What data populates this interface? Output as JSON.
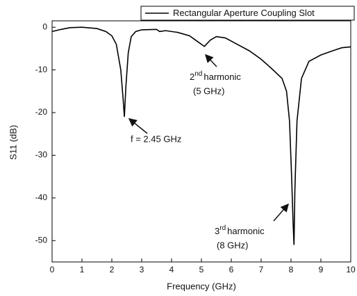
{
  "chart_data": {
    "type": "line",
    "xlabel": "Frequency (GHz)",
    "ylabel": "S11 (dB)",
    "xlim": [
      0,
      10
    ],
    "ylim": [
      -55,
      1.5
    ],
    "xticks": [
      0,
      1,
      2,
      3,
      4,
      5,
      6,
      7,
      8,
      9,
      10
    ],
    "yticks": [
      0,
      -10,
      -20,
      -30,
      -40,
      -50
    ],
    "legend": "top-right",
    "series": [
      {
        "name": "Rectangular Aperture Coupling Slot",
        "color": "#000000",
        "x": [
          0,
          0.3,
          0.6,
          1.0,
          1.5,
          1.8,
          2.0,
          2.15,
          2.3,
          2.38,
          2.42,
          2.47,
          2.55,
          2.65,
          2.8,
          3.0,
          3.5,
          3.6,
          3.8,
          4.2,
          4.6,
          4.9,
          5.1,
          5.3,
          5.5,
          5.8,
          6.2,
          6.6,
          7.0,
          7.4,
          7.7,
          7.85,
          7.95,
          8.02,
          8.07,
          8.1,
          8.13,
          8.2,
          8.35,
          8.6,
          9.0,
          9.4,
          9.7,
          10
        ],
        "values": [
          -1,
          -0.5,
          -0.1,
          0,
          -0.3,
          -1,
          -2,
          -4,
          -10,
          -17,
          -21,
          -14,
          -6,
          -2.2,
          -1,
          -0.6,
          -0.5,
          -1,
          -0.8,
          -1.2,
          -2,
          -3.5,
          -4.5,
          -3,
          -2.2,
          -2.5,
          -4,
          -5.5,
          -7.5,
          -10,
          -12,
          -15,
          -22,
          -35,
          -46,
          -51,
          -38,
          -22,
          -12,
          -8,
          -6.5,
          -5.5,
          -4.8,
          -4.6
        ]
      }
    ],
    "annotations": [
      {
        "text": "f = 2.45 GHz"
      },
      {
        "base": "2",
        "sup": "nd",
        "text": "harmonic",
        "sub": "(5 GHz)"
      },
      {
        "base": "3",
        "sup": "rd",
        "text": "harmonic",
        "sub": "(8 GHz)"
      }
    ]
  }
}
